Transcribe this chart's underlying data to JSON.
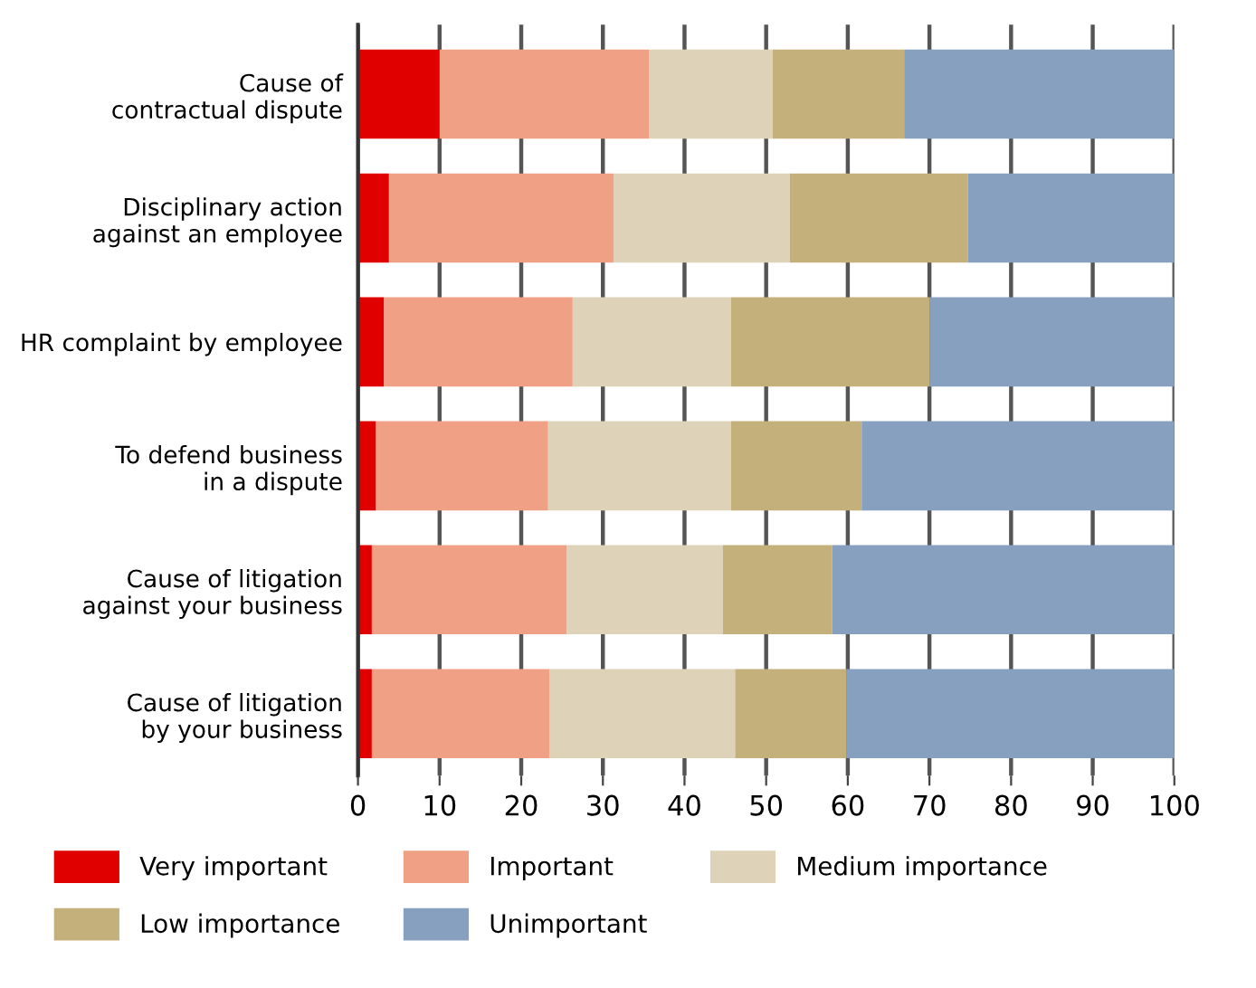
{
  "chart_data": {
    "type": "bar",
    "orientation": "horizontal",
    "stacked": true,
    "categories": [
      "Cause of\ncontractual dispute",
      "Disciplinary action\nagainst an employee",
      "HR complaint by employee",
      "To defend business\nin a dispute",
      "Cause of litigation\nagainst your business",
      "Cause of litigation\nby your business"
    ],
    "series": [
      {
        "name": "Very important",
        "color": "#e10000",
        "values": [
          10,
          3.8,
          3.2,
          2.2,
          1.7,
          1.7
        ]
      },
      {
        "name": "Important",
        "color": "#f0a185",
        "values": [
          25.7,
          27.5,
          23.1,
          21.1,
          23.9,
          21.8
        ]
      },
      {
        "name": "Medium importance",
        "color": "#ded3b9",
        "values": [
          15.1,
          21.6,
          19.4,
          22.4,
          19.1,
          22.7
        ]
      },
      {
        "name": "Low importance",
        "color": "#c3b07a",
        "values": [
          16.1,
          21.8,
          24.3,
          16.0,
          13.4,
          13.6
        ]
      },
      {
        "name": "Unimportant",
        "color": "#88a0bf",
        "values": [
          33.1,
          25.3,
          30.0,
          38.3,
          41.9,
          40.2
        ]
      }
    ],
    "xlim": [
      0,
      100
    ],
    "xticks": [
      0,
      10,
      20,
      30,
      40,
      50,
      60,
      70,
      80,
      90,
      100
    ],
    "grid": "x",
    "legend": "bottom"
  }
}
